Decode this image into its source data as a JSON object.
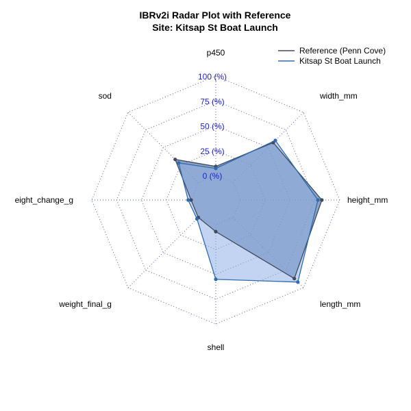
{
  "title_line1": "IBRv2i Radar Plot with Reference",
  "title_line2": "Site: Kitsap St Boat Launch",
  "chart_data": {
    "type": "radar",
    "axes": [
      "p450",
      "width_mm",
      "height_mm",
      "length_mm",
      "shell",
      "weight_final_g",
      "eight_change_g",
      "sod"
    ],
    "rmax": 100,
    "grid_levels": [
      0,
      25,
      50,
      75,
      100
    ],
    "tick_labels": [
      "0 (%)",
      "25 (%)",
      "50 (%)",
      "75 (%)",
      "100 (%)"
    ],
    "grid": "dotted",
    "legend_position": "top-right",
    "series": [
      {
        "name": "Reference (Penn Cove)",
        "color": "#3f4a5a",
        "fill": "#5f7aa8",
        "values": [
          9,
          57,
          82,
          87,
          7,
          0,
          0,
          33
        ]
      },
      {
        "name": "Kitsap St Boat Launch",
        "color": "#2f6bb0",
        "fill": "#8fb0e6",
        "values": [
          7,
          60,
          78,
          92,
          55,
          2,
          3,
          28
        ]
      }
    ]
  }
}
